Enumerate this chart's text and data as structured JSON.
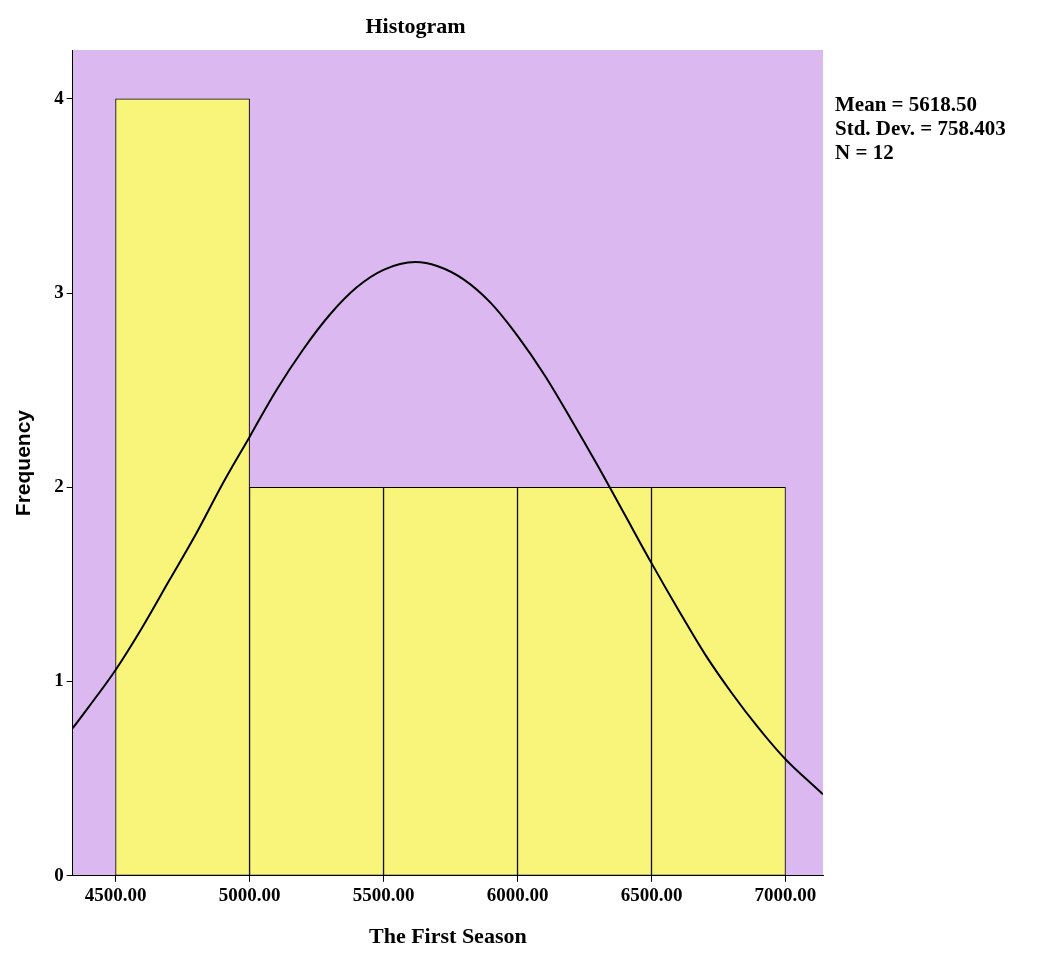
{
  "chart_data": {
    "type": "histogram",
    "title": "Histogram",
    "xlabel": "The First Season",
    "ylabel": "Frequency",
    "bins": [
      4500,
      5000,
      5500,
      6000,
      6500,
      7000
    ],
    "series": [
      {
        "type": "histogram",
        "values": [
          4,
          2,
          2,
          2,
          2
        ],
        "color": "#f9f57a"
      },
      {
        "type": "line",
        "color": "#000000",
        "x": [
          4340,
          4400,
          4500,
          4600,
          4700,
          4800,
          4900,
          5000,
          5100,
          5200,
          5300,
          5400,
          5500,
          5618.5,
          5700,
          5800,
          5900,
          6000,
          6100,
          6200,
          6300,
          6400,
          6500,
          6600,
          6700,
          6800,
          6900,
          7000,
          7100,
          7140
        ],
        "values": [
          0.76,
          0.87,
          1.06,
          1.28,
          1.52,
          1.76,
          2.02,
          2.26,
          2.5,
          2.71,
          2.89,
          3.03,
          3.12,
          3.16,
          3.14,
          3.07,
          2.95,
          2.78,
          2.58,
          2.35,
          2.11,
          1.86,
          1.61,
          1.37,
          1.14,
          0.94,
          0.76,
          0.6,
          0.47,
          0.42
        ]
      }
    ],
    "xlim": [
      4340,
      7140
    ],
    "xticks": [
      {
        "value": 4500,
        "label": "4500.00"
      },
      {
        "value": 5000,
        "label": "5000.00"
      },
      {
        "value": 5500,
        "label": "5500.00"
      },
      {
        "value": 6000,
        "label": "6000.00"
      },
      {
        "value": 6500,
        "label": "6500.00"
      },
      {
        "value": 7000,
        "label": "7000.00"
      }
    ],
    "ylim": [
      0,
      4.25
    ],
    "yticks": [
      0,
      1,
      2,
      3,
      4
    ],
    "annotations": [
      "Mean = 5618.50",
      "Std. Dev. = 758.403",
      "N = 12"
    ],
    "grid": false,
    "legend": false,
    "marker": "none"
  }
}
